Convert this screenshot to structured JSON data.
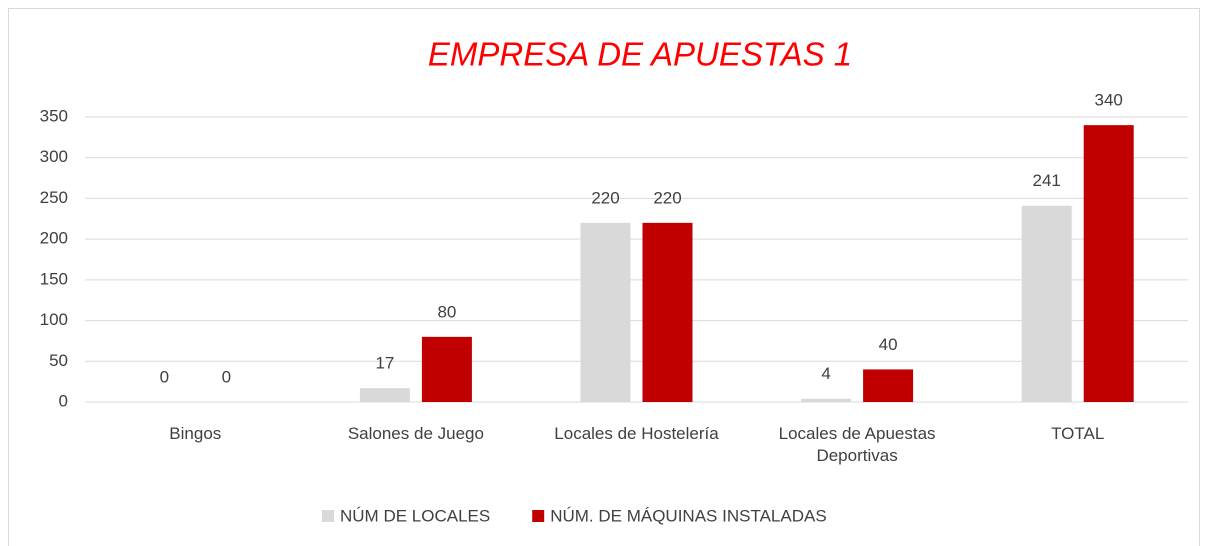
{
  "chart_data": {
    "type": "bar",
    "title": "EMPRESA DE APUESTAS 1",
    "categories": [
      "Bingos",
      "Salones de Juego",
      "Locales de Hostelería",
      "Locales de Apuestas Deportivas",
      "TOTAL"
    ],
    "series": [
      {
        "name": "NÚM DE LOCALES",
        "color": "#d9d9d9",
        "values": [
          0,
          17,
          220,
          4,
          241
        ]
      },
      {
        "name": "NÚM. DE MÁQUINAS INSTALADAS",
        "color": "#c00000",
        "values": [
          0,
          80,
          220,
          40,
          340
        ]
      }
    ],
    "ylim": [
      0,
      350
    ],
    "yticks": [
      0,
      50,
      100,
      150,
      200,
      250,
      300,
      350
    ],
    "grid": true,
    "legend": "bottom"
  }
}
